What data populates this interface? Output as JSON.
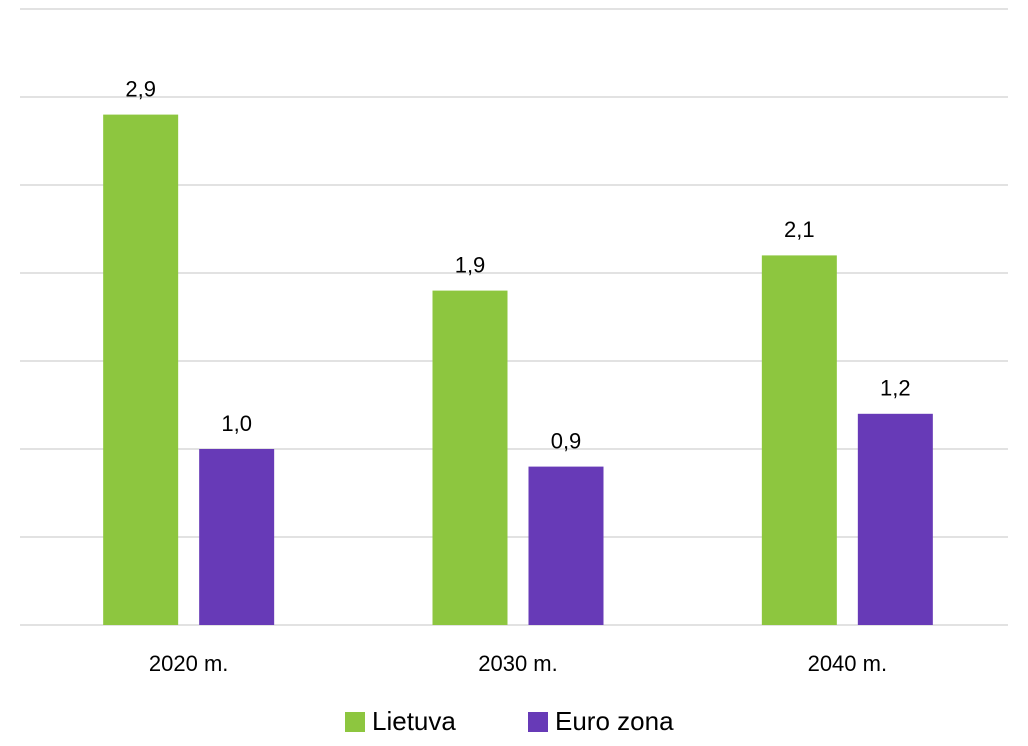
{
  "chart_data": {
    "type": "bar",
    "categories": [
      "2020 m.",
      "2030 m.",
      "2040 m."
    ],
    "series": [
      {
        "name": "Lietuva",
        "color": "#8dc63f",
        "values": [
          2.9,
          1.9,
          2.1
        ],
        "value_labels": [
          "2,9",
          "1,9",
          "2,1"
        ]
      },
      {
        "name": "Euro zona",
        "color": "#673ab7",
        "values": [
          1.0,
          0.9,
          1.2
        ],
        "value_labels": [
          "1,0",
          "0,9",
          "1,2"
        ]
      }
    ],
    "ylim": [
      0,
      3.5
    ],
    "yticks": [
      0,
      0.5,
      1,
      1.5,
      2,
      2.5,
      3,
      3.5
    ],
    "grid": true,
    "legend": "bottom"
  }
}
